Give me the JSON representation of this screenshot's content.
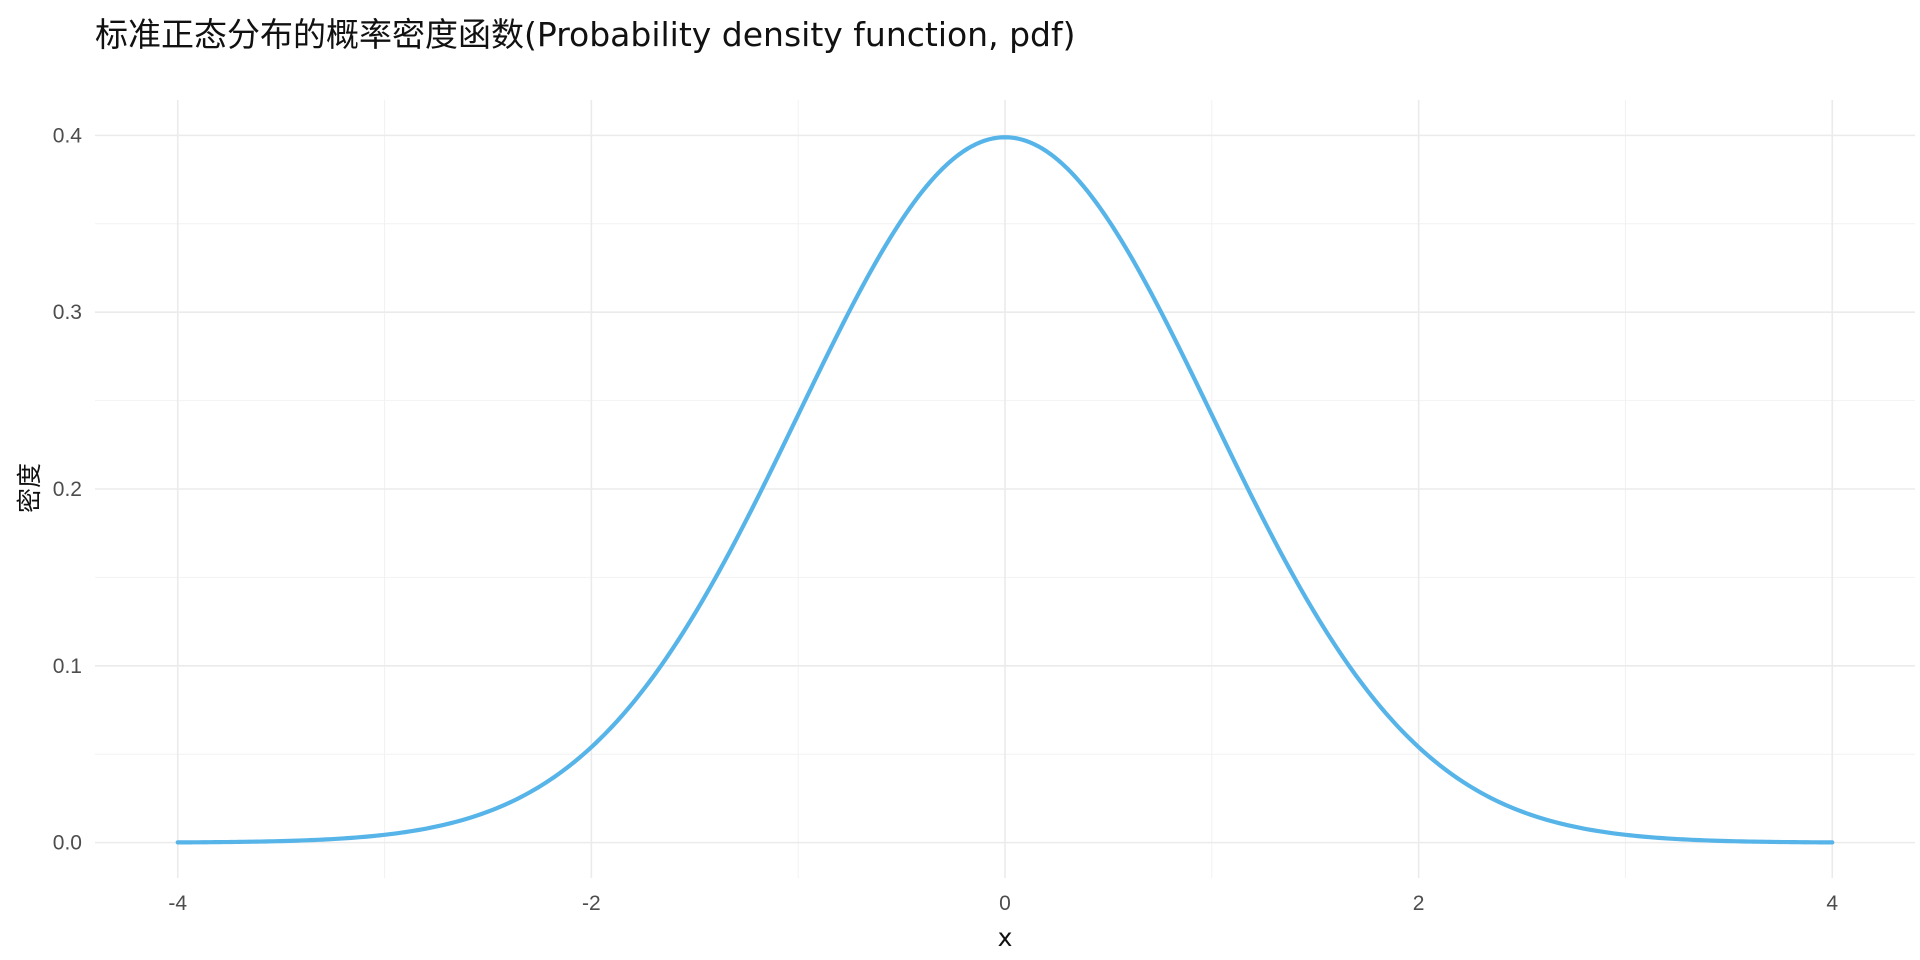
{
  "chart_data": {
    "type": "line",
    "title": "标准正态分布的概率密度函数(Probability density function, pdf)",
    "xlabel": "x",
    "ylabel": "密度",
    "xlim": [
      -4.4,
      4.4
    ],
    "ylim": [
      -0.02,
      0.42
    ],
    "x_ticks": [
      -4,
      -2,
      0,
      2,
      4
    ],
    "x_tick_labels": [
      "-4",
      "-2",
      "0",
      "2",
      "4"
    ],
    "y_ticks": [
      0.0,
      0.1,
      0.2,
      0.3,
      0.4
    ],
    "y_tick_labels": [
      "0.0",
      "0.1",
      "0.2",
      "0.3",
      "0.4"
    ],
    "grid": true,
    "legend": "none",
    "series": [
      {
        "color": "#56b4e9",
        "x": [
          -4,
          -3.5,
          -3,
          -2.75,
          -2.5,
          -2.25,
          -2,
          -1.75,
          -1.5,
          -1.25,
          -1,
          -0.75,
          -0.5,
          -0.25,
          0,
          0.25,
          0.5,
          0.75,
          1,
          1.25,
          1.5,
          1.75,
          2,
          2.25,
          2.5,
          2.75,
          3,
          3.5,
          4
        ],
        "y": [
          0.0001,
          0.0009,
          0.0044,
          0.0091,
          0.0175,
          0.0317,
          0.054,
          0.0863,
          0.1295,
          0.1826,
          0.242,
          0.3011,
          0.3521,
          0.3867,
          0.3989,
          0.3867,
          0.3521,
          0.3011,
          0.242,
          0.1826,
          0.1295,
          0.0863,
          0.054,
          0.0317,
          0.0175,
          0.0091,
          0.0044,
          0.0009,
          0.0001
        ]
      }
    ]
  }
}
